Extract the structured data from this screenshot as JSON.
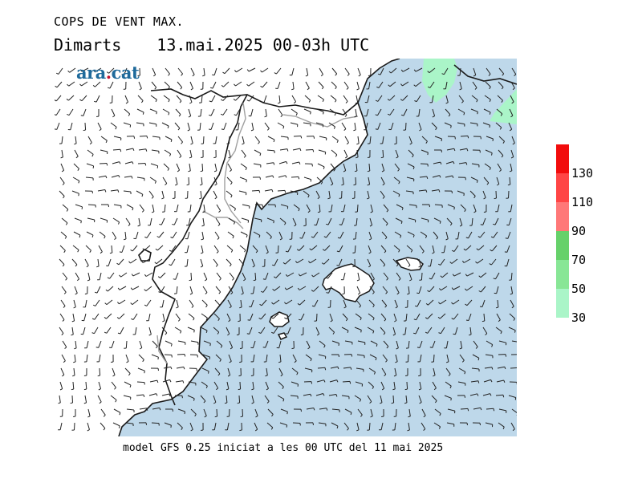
{
  "title": "COPS DE VENT MAX.",
  "day": "Dimarts",
  "date_range": "13.mai.2025 00-03h UTC",
  "logo": {
    "main": "ara",
    "dot": ".",
    "suffix": "cat"
  },
  "footer": "model GFS 0.25 iniciat a les 00 UTC del 11 mai 2025",
  "colors": {
    "sea": "#bed8ea",
    "coast": "#1a1a1a",
    "border": "#a0a0a0",
    "barb": "#222222"
  },
  "legend": {
    "bands": [
      {
        "color": "#aaf5c8"
      },
      {
        "color": "#88e696"
      },
      {
        "color": "#66d16a"
      },
      {
        "color": "#ff7878"
      },
      {
        "color": "#ff4545"
      },
      {
        "color": "#f20c0c"
      }
    ],
    "ticks": [
      "30",
      "50",
      "70",
      "90",
      "110",
      "130"
    ]
  }
}
